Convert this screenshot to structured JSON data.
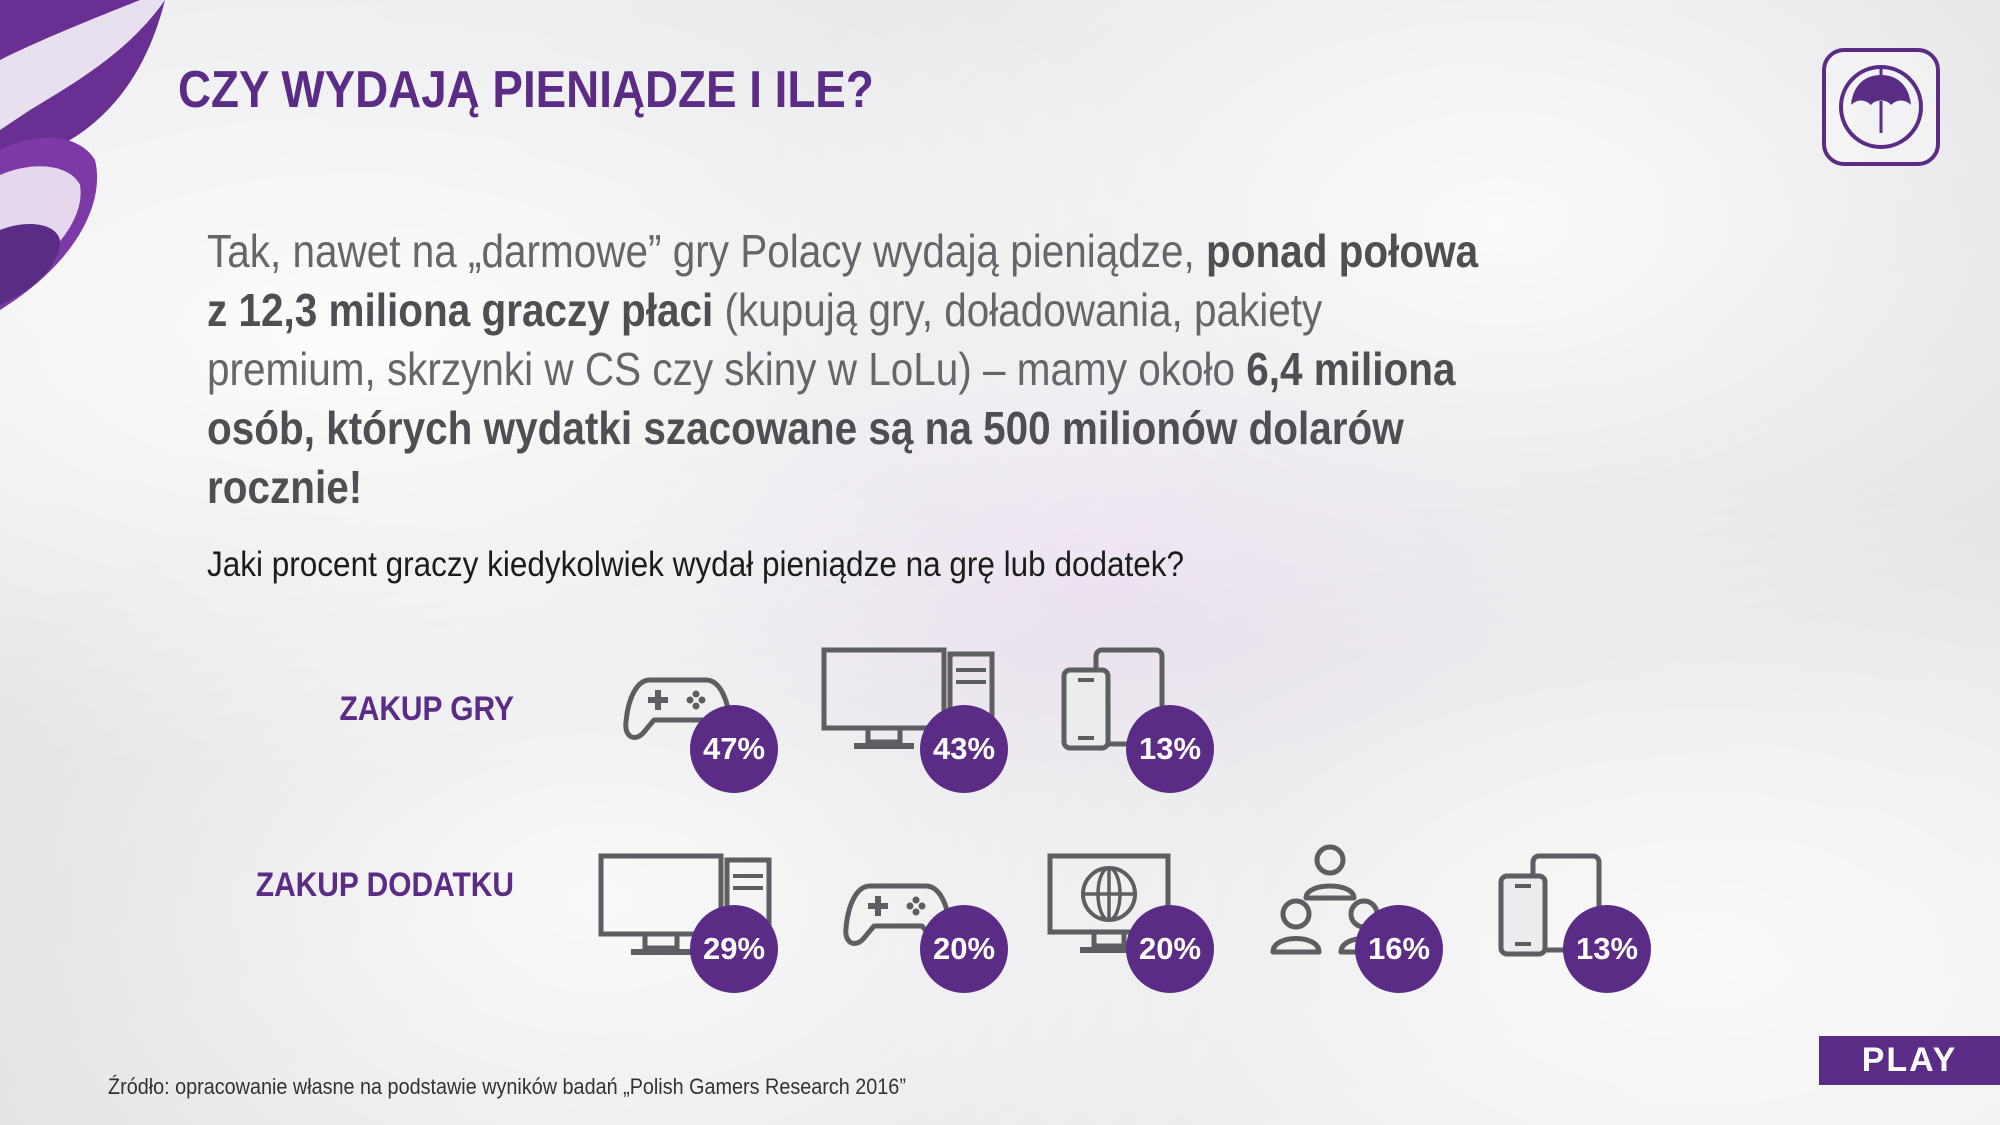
{
  "title": "CZY WYDAJĄ PIENIĄDZE I ILE?",
  "intro": {
    "p1": "Tak, nawet na „darmowe” gry Polacy wydają pieniądze, ",
    "b1": "ponad połowa z 12,3 miliona graczy płaci",
    "p2": " (kupują gry, doładowania, pakiety premium, skrzynki w CS czy skiny w LoLu) – mamy około ",
    "b2": "6,4 miliona osób, których wydatki szacowane są na 500 milionów dolarów rocznie!"
  },
  "question": "Jaki procent graczy kiedykolwiek wydał pieniądze na grę lub dodatek?",
  "rows": [
    {
      "label": "ZAKUP GRY",
      "items": [
        {
          "icon": "gamepad-icon",
          "value": "47%"
        },
        {
          "icon": "desktop-computer-icon",
          "value": "43%"
        },
        {
          "icon": "mobile-tablet-icon",
          "value": "13%"
        }
      ]
    },
    {
      "label": "ZAKUP DODATKU",
      "items": [
        {
          "icon": "desktop-computer-icon",
          "value": "29%"
        },
        {
          "icon": "gamepad-icon",
          "value": "20%"
        },
        {
          "icon": "web-globe-monitor-icon",
          "value": "20%"
        },
        {
          "icon": "social-users-icon",
          "value": "16%"
        },
        {
          "icon": "mobile-tablet-icon",
          "value": "13%"
        }
      ]
    }
  ],
  "source": "Źródło: opracowanie własne na podstawie wyników badań „Polish Gamers Research 2016”",
  "brand": {
    "name": "PLAY",
    "color": "#5b2c86"
  }
}
